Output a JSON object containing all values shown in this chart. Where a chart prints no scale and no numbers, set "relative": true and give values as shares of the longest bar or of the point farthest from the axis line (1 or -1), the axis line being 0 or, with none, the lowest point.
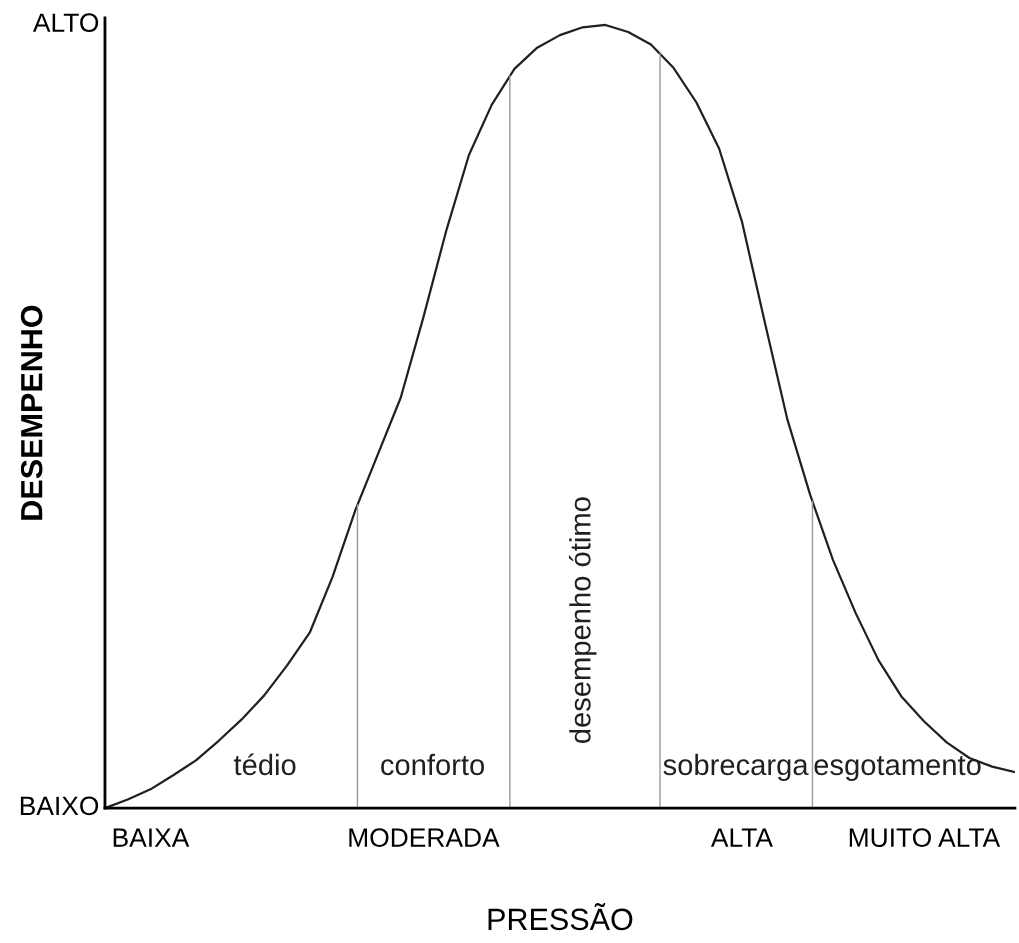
{
  "chart_data": {
    "type": "line",
    "relative": true,
    "xlabel": "PRESSÃO",
    "ylabel": "DESEMPENHO",
    "color": "#231f20",
    "categories": [
      null,
      null,
      "BAIXA",
      null,
      null,
      null,
      null,
      null,
      null,
      null,
      null,
      null,
      null,
      null,
      "MODERADA",
      null,
      null,
      null,
      null,
      null,
      null,
      null,
      null,
      null,
      null,
      null,
      null,
      null,
      "ALTA",
      null,
      null,
      null,
      null,
      null,
      null,
      null,
      "MUITO ALTA",
      null,
      null,
      null,
      null
    ],
    "values": [
      0,
      0.011,
      0.024,
      0.042,
      0.061,
      0.086,
      0.113,
      0.144,
      0.182,
      0.224,
      0.295,
      0.38,
      0.452,
      0.524,
      0.627,
      0.737,
      0.834,
      0.898,
      0.944,
      0.971,
      0.987,
      0.997,
      1.0,
      0.991,
      0.975,
      0.945,
      0.901,
      0.842,
      0.749,
      0.621,
      0.496,
      0.4,
      0.317,
      0.249,
      0.189,
      0.143,
      0.111,
      0.084,
      0.064,
      0.053,
      0.046
    ],
    "annotations": [
      "tédio",
      "conforto",
      "desempenho ótimo",
      "sobrecarga",
      "esgotamento",
      "ALTO",
      "BAIXO"
    ],
    "grid": false,
    "legend": false
  }
}
